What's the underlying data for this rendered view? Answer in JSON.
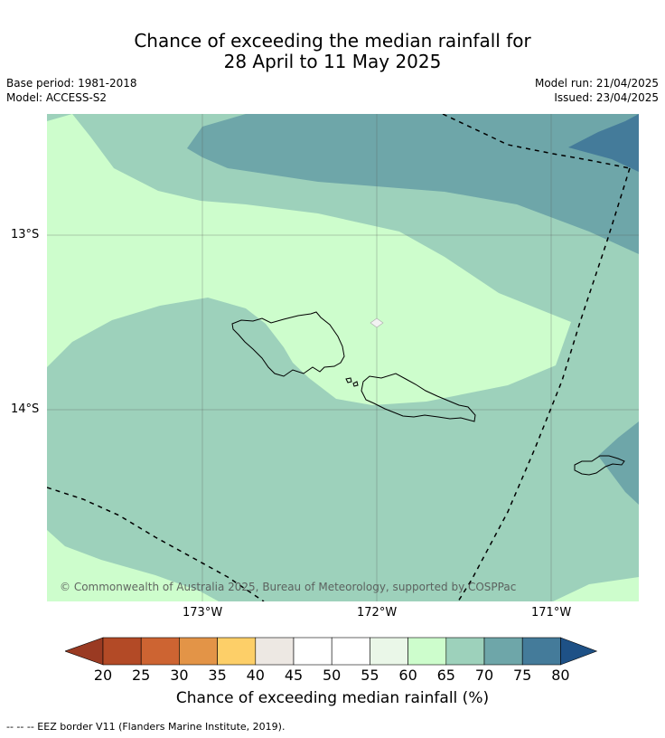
{
  "title_line1": "Chance of exceeding the median rainfall for",
  "title_line2": "28 April to 11 May 2025",
  "meta": {
    "base_period": "Base period: 1981-2018",
    "model": "Model: ACCESS-S2",
    "model_run": "Model run: 21/04/2025",
    "issued": "Issued: 23/04/2025"
  },
  "map": {
    "lat_labels": [
      "13°S",
      "14°S"
    ],
    "lon_labels": [
      "173°W",
      "172°W",
      "171°W"
    ],
    "copyright": "© Commonwealth of Australia 2025, Bureau of Meteorology, supported by COSPPac"
  },
  "colorbar": {
    "ticks": [
      "20",
      "25",
      "30",
      "35",
      "40",
      "45",
      "50",
      "55",
      "60",
      "65",
      "70",
      "75",
      "80"
    ],
    "colors": [
      "#b34a26",
      "#cd6432",
      "#e39447",
      "#fdcf68",
      "#ede8e3",
      "#ffffff",
      "#ffffff",
      "#eaf7e8",
      "#cdfdcc",
      "#9dd1bb",
      "#6ea6a9",
      "#447b9a"
    ],
    "under_color": "#9a3a22",
    "over_color": "#1e5186",
    "title": "Chance of exceeding median rainfall (%)"
  },
  "footnote": "--  --  -- EEZ border V11 (Flanders Marine Institute, 2019)."
}
